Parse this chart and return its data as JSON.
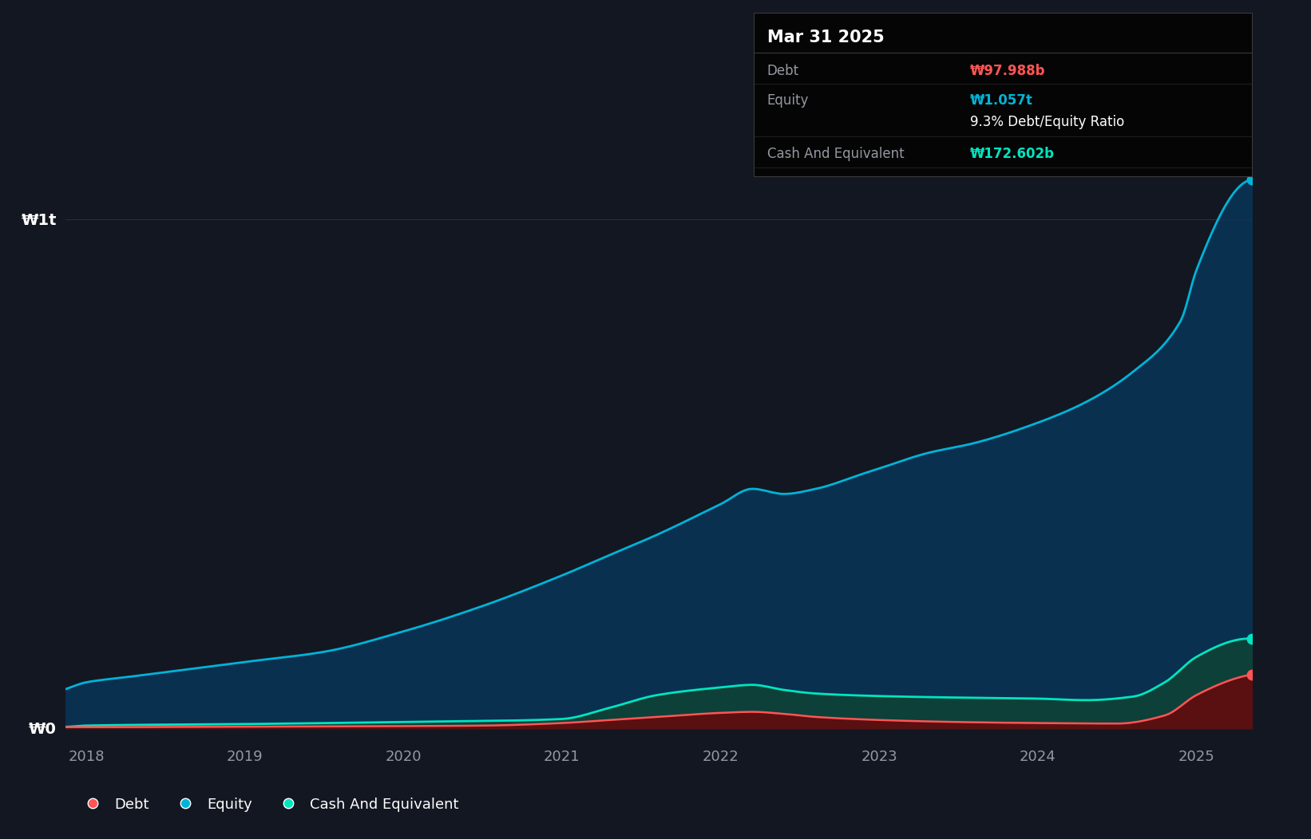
{
  "background_color": "#131722",
  "plot_bg_color": "#131722",
  "tooltip_title": "Mar 31 2025",
  "tooltip_debt_label": "Debt",
  "tooltip_debt_val": "₩97.988b",
  "tooltip_equity_label": "Equity",
  "tooltip_equity_val": "₩1.057t",
  "tooltip_ratio": "9.3% Debt/Equity Ratio",
  "tooltip_cash_label": "Cash And Equivalent",
  "tooltip_cash_val": "₩172.602b",
  "debt_color": "#ff5555",
  "equity_color": "#00b4d8",
  "cash_color": "#00e5c0",
  "equity_fill_color": "#0a3050",
  "cash_fill_color": "#0d4038",
  "debt_fill_color": "#5a1010",
  "ylabel_w1t": "₩1t",
  "ylabel_w0": "₩0",
  "grid_color": "#2a2e39",
  "text_color_white": "#ffffff",
  "text_color_gray": "#9598a1",
  "eq_x": [
    2017.9,
    2018.0,
    2018.25,
    2018.5,
    2019.0,
    2019.5,
    2020.0,
    2020.5,
    2021.0,
    2021.3,
    2021.6,
    2022.0,
    2022.2,
    2022.4,
    2022.6,
    2022.9,
    2023.0,
    2023.3,
    2023.6,
    2024.0,
    2024.3,
    2024.6,
    2024.9,
    2025.0,
    2025.25
  ],
  "eq_y": [
    0.08,
    0.09,
    0.1,
    0.11,
    0.13,
    0.15,
    0.19,
    0.24,
    0.3,
    0.34,
    0.38,
    0.44,
    0.47,
    0.46,
    0.47,
    0.5,
    0.51,
    0.54,
    0.56,
    0.6,
    0.64,
    0.7,
    0.8,
    0.9,
    1.057
  ],
  "debt_x": [
    2017.9,
    2018.0,
    2019.0,
    2020.0,
    2020.5,
    2021.0,
    2021.3,
    2021.6,
    2022.0,
    2022.2,
    2022.4,
    2022.6,
    2023.0,
    2023.5,
    2024.0,
    2024.5,
    2024.8,
    2025.0,
    2025.25
  ],
  "debt_y": [
    0.002,
    0.002,
    0.003,
    0.004,
    0.005,
    0.01,
    0.016,
    0.022,
    0.03,
    0.032,
    0.028,
    0.022,
    0.016,
    0.012,
    0.01,
    0.009,
    0.025,
    0.065,
    0.098
  ],
  "cash_x": [
    2017.9,
    2018.0,
    2019.0,
    2020.0,
    2020.5,
    2021.0,
    2021.3,
    2021.6,
    2022.0,
    2022.2,
    2022.4,
    2022.6,
    2023.0,
    2023.5,
    2024.0,
    2024.3,
    2024.6,
    2024.8,
    2025.0,
    2025.25
  ],
  "cash_y": [
    0.003,
    0.005,
    0.008,
    0.012,
    0.014,
    0.018,
    0.04,
    0.065,
    0.08,
    0.085,
    0.075,
    0.068,
    0.063,
    0.06,
    0.058,
    0.055,
    0.062,
    0.09,
    0.14,
    0.173
  ],
  "xmin": 2017.87,
  "xmax": 2025.35,
  "ymin": -0.02,
  "ymax": 1.15
}
